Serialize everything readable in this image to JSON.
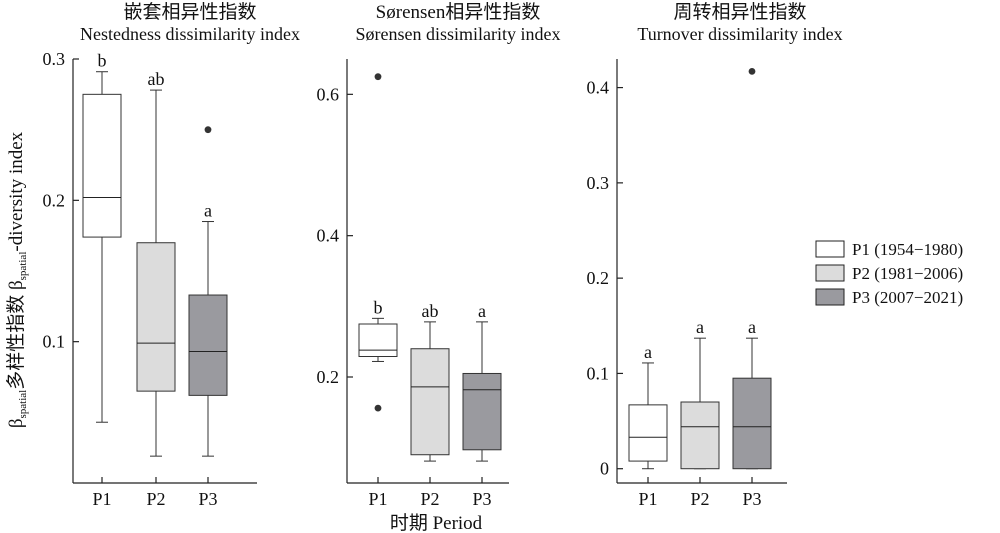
{
  "figure": {
    "ylabel": {
      "prefix": "β",
      "sub1": "spatial",
      "middle": "多样性指数 β",
      "sub2": "spatial",
      "suffix": "-diversity index"
    },
    "xlabel": "时期 Period"
  },
  "legend": {
    "items": [
      {
        "label": "P1 (1954−1980)",
        "color": "#ffffff"
      },
      {
        "label": "P2 (1981−2006)",
        "color": "#dcdcdc"
      },
      {
        "label": "P3 (2007−2021)",
        "color": "#9a9a9f"
      }
    ]
  },
  "chart_data": [
    {
      "type": "box",
      "title_cn": "嵌套相异性指数",
      "title_en": "Nestedness dissimilarity index",
      "ylim": [
        0,
        0.3
      ],
      "yticks": [
        0.1,
        0.2,
        0.3
      ],
      "ytick_labels": [
        "0.1",
        "0.2",
        "0.3"
      ],
      "categories": [
        "P1",
        "P2",
        "P3"
      ],
      "boxes": [
        {
          "name": "P1",
          "whisker_low": 0.043,
          "q1": 0.174,
          "median": 0.202,
          "q3": 0.275,
          "whisker_high": 0.291,
          "outliers": [],
          "sig": "b"
        },
        {
          "name": "P2",
          "whisker_low": 0.019,
          "q1": 0.065,
          "median": 0.099,
          "q3": 0.17,
          "whisker_high": 0.278,
          "outliers": [],
          "sig": "ab"
        },
        {
          "name": "P3",
          "whisker_low": 0.019,
          "q1": 0.062,
          "median": 0.093,
          "q3": 0.133,
          "whisker_high": 0.185,
          "outliers": [
            0.25
          ],
          "sig": "a"
        }
      ]
    },
    {
      "type": "box",
      "title_cn": "Sørensen相异性指数",
      "title_en": "Sørensen dissimilarity index",
      "ylim": [
        0.05,
        0.65
      ],
      "yticks": [
        0.2,
        0.4,
        0.6
      ],
      "ytick_labels": [
        "0.2",
        "0.4",
        "0.6"
      ],
      "categories": [
        "P1",
        "P2",
        "P3"
      ],
      "boxes": [
        {
          "name": "P1",
          "whisker_low": 0.222,
          "q1": 0.229,
          "median": 0.238,
          "q3": 0.275,
          "whisker_high": 0.283,
          "outliers": [
            0.156,
            0.625
          ],
          "sig": "b"
        },
        {
          "name": "P2",
          "whisker_low": 0.081,
          "q1": 0.09,
          "median": 0.186,
          "q3": 0.24,
          "whisker_high": 0.278,
          "outliers": [],
          "sig": "ab"
        },
        {
          "name": "P3",
          "whisker_low": 0.081,
          "q1": 0.097,
          "median": 0.182,
          "q3": 0.205,
          "whisker_high": 0.278,
          "outliers": [],
          "sig": "a"
        }
      ]
    },
    {
      "type": "box",
      "title_cn": "周转相异性指数",
      "title_en": "Turnover dissimilarity index",
      "ylim": [
        -0.015,
        0.43
      ],
      "yticks": [
        0,
        0.1,
        0.2,
        0.3,
        0.4
      ],
      "ytick_labels": [
        "0",
        "0.1",
        "0.2",
        "0.3",
        "0.4"
      ],
      "categories": [
        "P1",
        "P2",
        "P3"
      ],
      "boxes": [
        {
          "name": "P1",
          "whisker_low": 0.0,
          "q1": 0.008,
          "median": 0.033,
          "q3": 0.067,
          "whisker_high": 0.111,
          "outliers": [],
          "sig": "a"
        },
        {
          "name": "P2",
          "whisker_low": 0.0,
          "q1": 0.0,
          "median": 0.044,
          "q3": 0.07,
          "whisker_high": 0.137,
          "outliers": [],
          "sig": "a"
        },
        {
          "name": "P3",
          "whisker_low": 0.0,
          "q1": 0.0,
          "median": 0.044,
          "q3": 0.095,
          "whisker_high": 0.137,
          "outliers": [
            0.417
          ],
          "sig": "a"
        }
      ]
    }
  ]
}
